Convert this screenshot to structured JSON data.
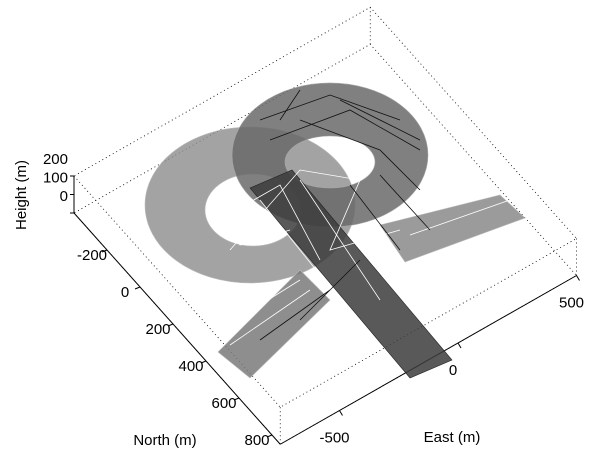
{
  "chart_data": {
    "type": "surface3d",
    "xlabel": "East (m)",
    "ylabel": "North (m)",
    "zlabel": "Height (m)",
    "xlim": [
      -750,
      500
    ],
    "ylim": [
      -400,
      850
    ],
    "zlim": [
      0,
      200
    ],
    "xticks": [
      -500,
      0,
      500
    ],
    "yticks": [
      -200,
      0,
      200,
      400,
      600,
      800
    ],
    "zticks": [
      0,
      100,
      200
    ]
  }
}
